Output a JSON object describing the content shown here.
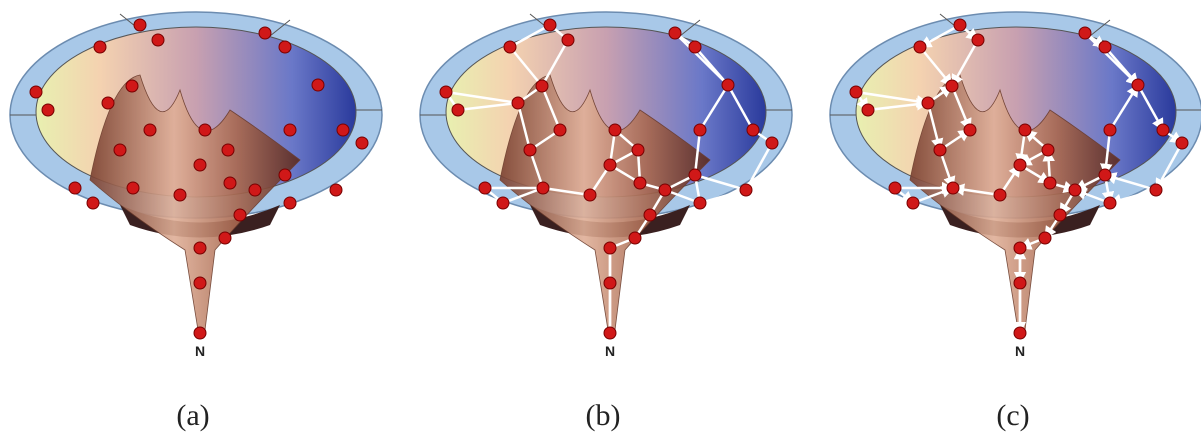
{
  "panels": [
    {
      "caption": "(a)",
      "node_label": "N"
    },
    {
      "caption": "(b)",
      "node_label": "N"
    },
    {
      "caption": "(c)",
      "node_label": "N"
    }
  ]
}
